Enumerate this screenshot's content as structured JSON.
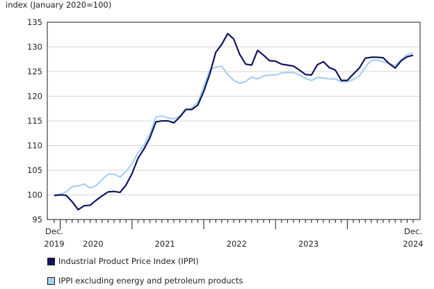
{
  "chart_data": {
    "type": "line",
    "ylabel": "index (January 2020=100)",
    "ylim": [
      95,
      135
    ],
    "yticks": [
      95,
      100,
      105,
      110,
      115,
      120,
      125,
      130,
      135
    ],
    "grid": true,
    "x_start_label": [
      "Dec.",
      "2019"
    ],
    "x_end_label": [
      "Dec.",
      "2024"
    ],
    "year_labels": [
      "2020",
      "2021",
      "2022",
      "2023"
    ],
    "series": [
      {
        "name": "Industrial Product Price Index (IPPI)",
        "color": "#0f1460",
        "values": [
          99.9,
          100.0,
          99.9,
          98.6,
          97.0,
          97.8,
          97.9,
          98.9,
          99.8,
          100.6,
          100.7,
          100.5,
          102.0,
          104.3,
          107.4,
          109.3,
          111.6,
          114.8,
          115.0,
          115.0,
          114.6,
          115.8,
          117.3,
          117.3,
          118.2,
          121.0,
          124.5,
          128.9,
          130.5,
          132.7,
          131.6,
          128.5,
          126.5,
          126.3,
          129.3,
          128.3,
          127.2,
          127.1,
          126.5,
          126.3,
          126.1,
          125.3,
          124.4,
          124.3,
          126.4,
          127.0,
          125.8,
          125.3,
          123.2,
          123.2,
          124.5,
          125.7,
          127.7,
          127.9,
          127.9,
          127.8,
          126.6,
          125.7,
          127.2,
          128.0,
          128.3
        ]
      },
      {
        "name": "IPPI excluding energy and petroleum products",
        "color": "#a8d1ec",
        "values": [
          99.7,
          100.1,
          100.6,
          101.7,
          101.8,
          102.2,
          101.4,
          101.9,
          103.1,
          104.2,
          104.2,
          103.6,
          104.8,
          106.3,
          108.5,
          110.1,
          112.4,
          115.8,
          116.0,
          115.6,
          115.4,
          116.0,
          117.4,
          117.6,
          118.8,
          122.0,
          125.3,
          125.9,
          126.1,
          124.4,
          123.2,
          122.6,
          123.0,
          123.9,
          123.5,
          124.1,
          124.3,
          124.3,
          124.7,
          124.8,
          124.8,
          124.3,
          123.6,
          123.2,
          123.8,
          123.7,
          123.5,
          123.5,
          122.9,
          122.9,
          123.4,
          124.1,
          125.9,
          127.3,
          127.3,
          127.0,
          126.6,
          126.2,
          127.4,
          128.4,
          128.8
        ]
      }
    ]
  }
}
